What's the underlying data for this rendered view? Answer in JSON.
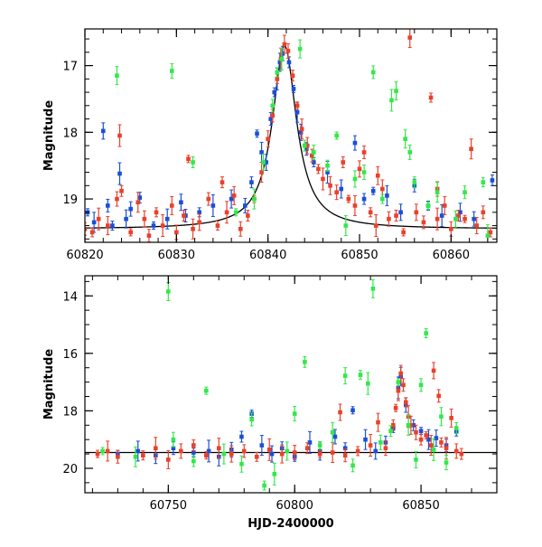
{
  "chart_data": [
    {
      "type": "scatter",
      "title": "",
      "xlabel": "",
      "ylabel": "Magnitude",
      "xlim": [
        60820,
        60865
      ],
      "ylim": [
        19.65,
        16.45
      ],
      "y_inverted": true,
      "xticks": [
        60820,
        60830,
        60840,
        60850,
        60860
      ],
      "yticks": [
        17,
        18,
        19
      ],
      "model_curve": {
        "color": "#000000",
        "peak_x": 60841.8,
        "peak_y": 16.7,
        "baseline": 19.45,
        "width_days": 1.6
      },
      "series": [
        {
          "color": "#1a4fd6",
          "points": [
            [
              60820.3,
              19.2
            ],
            [
              60821.0,
              19.35
            ],
            [
              60822.0,
              17.98
            ],
            [
              60822.5,
              19.1
            ],
            [
              60823.0,
              19.4
            ],
            [
              60823.8,
              18.62
            ],
            [
              60824.5,
              19.3
            ],
            [
              60825.0,
              19.15
            ],
            [
              60826.0,
              18.98
            ],
            [
              60827.5,
              19.4
            ],
            [
              60829.0,
              19.3
            ],
            [
              60830.5,
              19.05
            ],
            [
              60831.0,
              19.25
            ],
            [
              60832.5,
              19.2
            ],
            [
              60834.0,
              19.1
            ],
            [
              60836.0,
              19.0
            ],
            [
              60837.5,
              19.1
            ],
            [
              60838.2,
              18.75
            ],
            [
              60838.8,
              18.02
            ],
            [
              60839.3,
              18.3
            ],
            [
              60839.8,
              18.45
            ],
            [
              60840.3,
              17.8
            ],
            [
              60840.7,
              17.4
            ],
            [
              60841.0,
              17.2
            ],
            [
              60841.3,
              16.95
            ],
            [
              60841.6,
              16.82
            ],
            [
              60842.3,
              16.95
            ],
            [
              60842.8,
              17.35
            ],
            [
              60843.2,
              17.7
            ],
            [
              60843.6,
              18.0
            ],
            [
              60844.2,
              18.25
            ],
            [
              60845.0,
              18.45
            ],
            [
              60846.5,
              18.6
            ],
            [
              60848.0,
              18.85
            ],
            [
              60849.5,
              18.16
            ],
            [
              60850.5,
              19.0
            ],
            [
              60851.5,
              18.88
            ],
            [
              60853.0,
              18.95
            ],
            [
              60854.5,
              19.2
            ],
            [
              60856.0,
              18.8
            ],
            [
              60857.5,
              19.1
            ],
            [
              60859.0,
              19.25
            ],
            [
              60861.0,
              19.2
            ],
            [
              60862.5,
              19.3
            ],
            [
              60864.5,
              18.72
            ]
          ]
        },
        {
          "color": "#e8412c",
          "points": [
            [
              60820.0,
              19.45
            ],
            [
              60820.8,
              19.5
            ],
            [
              60821.5,
              19.3
            ],
            [
              60822.5,
              19.4
            ],
            [
              60823.5,
              19.0
            ],
            [
              60824.0,
              18.88
            ],
            [
              60825.0,
              19.5
            ],
            [
              60825.8,
              19.05
            ],
            [
              60826.5,
              19.3
            ],
            [
              60827.0,
              19.55
            ],
            [
              60827.8,
              19.2
            ],
            [
              60828.5,
              19.4
            ],
            [
              60829.5,
              19.1
            ],
            [
              60830.0,
              19.5
            ],
            [
              60830.8,
              19.25
            ],
            [
              60831.3,
              18.4
            ],
            [
              60831.8,
              19.45
            ],
            [
              60832.5,
              19.35
            ],
            [
              60833.5,
              19.0
            ],
            [
              60834.5,
              19.4
            ],
            [
              60835.5,
              19.2
            ],
            [
              60836.3,
              18.95
            ],
            [
              60837.0,
              19.45
            ],
            [
              60837.8,
              19.25
            ],
            [
              60838.5,
              19.0
            ],
            [
              60839.3,
              18.6
            ],
            [
              60840.0,
              18.1
            ],
            [
              60840.5,
              17.75
            ],
            [
              60841.0,
              17.2
            ],
            [
              60841.4,
              16.9
            ],
            [
              60841.8,
              16.68
            ],
            [
              60842.2,
              16.78
            ],
            [
              60842.7,
              17.15
            ],
            [
              60843.2,
              17.6
            ],
            [
              60843.7,
              17.95
            ],
            [
              60844.3,
              18.2
            ],
            [
              60844.8,
              18.35
            ],
            [
              60845.5,
              18.55
            ],
            [
              60846.0,
              18.7
            ],
            [
              60846.8,
              18.8
            ],
            [
              60847.5,
              18.9
            ],
            [
              60848.2,
              18.45
            ],
            [
              60848.8,
              19.0
            ],
            [
              60849.5,
              19.1
            ],
            [
              60850.0,
              18.55
            ],
            [
              60850.5,
              18.3
            ],
            [
              60851.2,
              19.2
            ],
            [
              60851.8,
              19.4
            ],
            [
              60852.5,
              18.85
            ],
            [
              60853.2,
              19.3
            ],
            [
              60854.0,
              19.25
            ],
            [
              60854.8,
              19.5
            ],
            [
              60855.5,
              16.58
            ],
            [
              60856.2,
              19.2
            ],
            [
              60857.0,
              19.35
            ],
            [
              60857.8,
              17.48
            ],
            [
              60858.5,
              19.3
            ],
            [
              60859.3,
              19.1
            ],
            [
              60860.0,
              19.45
            ],
            [
              60860.8,
              19.25
            ],
            [
              60861.5,
              19.3
            ],
            [
              60862.2,
              18.25
            ],
            [
              60862.8,
              19.4
            ],
            [
              60863.5,
              19.2
            ],
            [
              60864.3,
              19.5
            ],
            [
              60823.8,
              18.05
            ],
            [
              60852.0,
              18.65
            ],
            [
              60858.5,
              18.85
            ],
            [
              60835.0,
              18.75
            ]
          ]
        },
        {
          "color": "#33e84a",
          "points": [
            [
              60823.5,
              17.15
            ],
            [
              60829.5,
              17.08
            ],
            [
              60831.8,
              18.45
            ],
            [
              60836.5,
              19.2
            ],
            [
              60838.5,
              19.0
            ],
            [
              60839.5,
              18.45
            ],
            [
              60840.5,
              17.6
            ],
            [
              60841.0,
              17.1
            ],
            [
              60841.5,
              16.9
            ],
            [
              60843.5,
              16.75
            ],
            [
              60845.0,
              18.3
            ],
            [
              60846.5,
              18.5
            ],
            [
              60847.5,
              18.05
            ],
            [
              60848.5,
              19.4
            ],
            [
              60849.5,
              18.7
            ],
            [
              60851.5,
              17.1
            ],
            [
              60852.5,
              19.0
            ],
            [
              60853.5,
              17.52
            ],
            [
              60854.0,
              17.38
            ],
            [
              60855.5,
              18.3
            ],
            [
              60856.0,
              18.75
            ],
            [
              60857.5,
              19.1
            ],
            [
              60858.5,
              18.9
            ],
            [
              60860.5,
              19.3
            ],
            [
              60861.5,
              18.9
            ],
            [
              60863.5,
              18.75
            ],
            [
              60864.0,
              19.55
            ],
            [
              60855.0,
              18.1
            ],
            [
              60850.5,
              18.6
            ],
            [
              60844.0,
              18.2
            ]
          ]
        }
      ]
    },
    {
      "type": "scatter",
      "title": "",
      "xlabel": "HJD-2400000",
      "ylabel": "Magnitude",
      "xlim": [
        60717,
        60880
      ],
      "ylim": [
        20.85,
        13.3
      ],
      "y_inverted": true,
      "xticks": [
        60750,
        60800,
        60850
      ],
      "yticks": [
        14,
        16,
        18,
        20
      ],
      "baseline": {
        "y": 19.45,
        "color": "#000000"
      },
      "peak": {
        "x": 60842,
        "y": 16.7
      },
      "series": [
        {
          "color": "#1a4fd6",
          "points": [
            [
              60730,
              19.5
            ],
            [
              60738,
              19.4
            ],
            [
              60745,
              19.55
            ],
            [
              60752,
              19.3
            ],
            [
              60760,
              19.45
            ],
            [
              60766,
              19.4
            ],
            [
              60770,
              19.6
            ],
            [
              60775,
              19.35
            ],
            [
              60779,
              18.9
            ],
            [
              60783,
              18.1
            ],
            [
              60787,
              19.2
            ],
            [
              60791,
              19.5
            ],
            [
              60795,
              19.3
            ],
            [
              60800,
              19.6
            ],
            [
              60806,
              19.1
            ],
            [
              60810,
              19.4
            ],
            [
              60816,
              18.9
            ],
            [
              60820,
              19.3
            ],
            [
              60823,
              17.98
            ],
            [
              60828,
              19.0
            ],
            [
              60832,
              19.4
            ],
            [
              60836,
              19.1
            ],
            [
              60839,
              18.6
            ],
            [
              60841,
              17.2
            ],
            [
              60842,
              16.8
            ],
            [
              60844,
              17.8
            ],
            [
              60847,
              18.5
            ],
            [
              60850,
              18.7
            ],
            [
              60853,
              19.0
            ],
            [
              60856,
              18.95
            ],
            [
              60860,
              19.2
            ],
            [
              60864,
              18.72
            ]
          ]
        },
        {
          "color": "#e8412c",
          "points": [
            [
              60730,
              19.6
            ],
            [
              60740,
              19.55
            ],
            [
              60745,
              19.3
            ],
            [
              60750,
              19.7
            ],
            [
              60755,
              19.4
            ],
            [
              60760,
              19.2
            ],
            [
              60765,
              19.55
            ],
            [
              60770,
              19.3
            ],
            [
              60775,
              19.5
            ],
            [
              60780,
              19.4
            ],
            [
              60785,
              19.6
            ],
            [
              60790,
              19.35
            ],
            [
              60795,
              19.5
            ],
            [
              60800,
              19.45
            ],
            [
              60805,
              19.3
            ],
            [
              60810,
              19.5
            ],
            [
              60815,
              19.45
            ],
            [
              60818,
              18.05
            ],
            [
              60820,
              19.55
            ],
            [
              60825,
              19.4
            ],
            [
              60830,
              19.2
            ],
            [
              60833,
              18.4
            ],
            [
              60836,
              19.3
            ],
            [
              60839,
              18.5
            ],
            [
              60840,
              17.9
            ],
            [
              60841,
              17.3
            ],
            [
              60842,
              16.7
            ],
            [
              60843,
              17.1
            ],
            [
              60844,
              17.7
            ],
            [
              60845,
              18.2
            ],
            [
              60846,
              18.5
            ],
            [
              60848,
              18.75
            ],
            [
              60850,
              19.0
            ],
            [
              60852,
              18.85
            ],
            [
              60854,
              19.2
            ],
            [
              60855,
              16.6
            ],
            [
              60857,
              17.48
            ],
            [
              60858,
              19.1
            ],
            [
              60860,
              19.3
            ],
            [
              60862,
              18.25
            ],
            [
              60864,
              19.4
            ],
            [
              60866,
              19.5
            ],
            [
              60722,
              19.5
            ],
            [
              60726,
              19.4
            ]
          ]
        },
        {
          "color": "#33e84a",
          "points": [
            [
              60750,
              13.85
            ],
            [
              60752,
              19.0
            ],
            [
              60760,
              19.75
            ],
            [
              60765,
              17.3
            ],
            [
              60772,
              19.5
            ],
            [
              60779,
              19.85
            ],
            [
              60783,
              18.3
            ],
            [
              60788,
              20.6
            ],
            [
              60792,
              20.2
            ],
            [
              60797,
              19.4
            ],
            [
              60800,
              18.1
            ],
            [
              60804,
              16.3
            ],
            [
              60810,
              19.2
            ],
            [
              60815,
              18.75
            ],
            [
              60820,
              16.78
            ],
            [
              60823,
              19.9
            ],
            [
              60826,
              16.75
            ],
            [
              60829,
              17.05
            ],
            [
              60831,
              13.75
            ],
            [
              60834,
              19.1
            ],
            [
              60838,
              18.7
            ],
            [
              60841,
              17.0
            ],
            [
              60845,
              18.5
            ],
            [
              60848,
              19.7
            ],
            [
              60850,
              17.1
            ],
            [
              60852,
              15.3
            ],
            [
              60855,
              19.35
            ],
            [
              60858,
              18.2
            ],
            [
              60860,
              19.8
            ],
            [
              60864,
              18.6
            ],
            [
              60724,
              19.4
            ],
            [
              60737,
              19.6
            ]
          ]
        }
      ]
    }
  ]
}
